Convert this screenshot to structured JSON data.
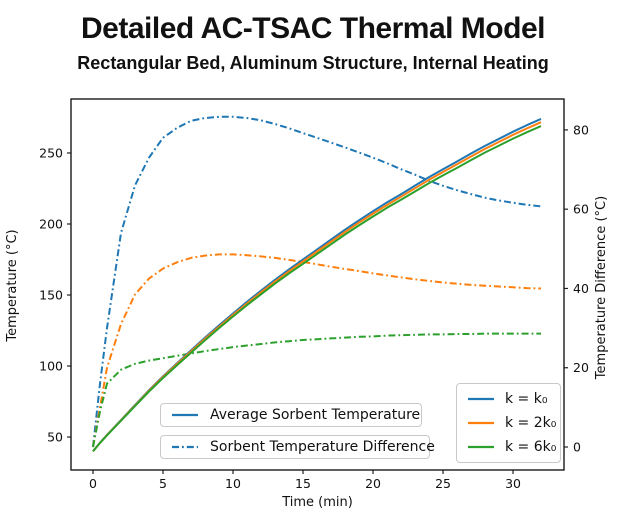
{
  "title": "Detailed AC-TSAC Thermal Model",
  "subtitle": "Rectangular Bed, Aluminum Structure, Internal Heating",
  "chart_data": {
    "type": "line",
    "title": "Detailed AC-TSAC Thermal Model",
    "subtitle": "Rectangular Bed, Aluminum Structure, Internal Heating",
    "xlabel": "Time (min)",
    "ylabel_left": "Temperature (°C)",
    "ylabel_right": "Temperature Difference (°C)",
    "grid": false,
    "xlim": [
      -1.57,
      33.64
    ],
    "ylim_left": [
      26.8,
      288.0
    ],
    "ylim_right": [
      -5.8,
      87.8
    ],
    "xticks": [
      0,
      5,
      10,
      15,
      20,
      25,
      30
    ],
    "yticks_left": [
      50,
      100,
      150,
      200,
      250
    ],
    "yticks_right": [
      0,
      20,
      40,
      60,
      80
    ],
    "x": [
      0,
      0.5,
      1,
      2,
      3,
      4,
      5,
      6,
      7,
      8,
      9,
      10,
      11,
      12,
      13,
      14,
      15,
      16,
      17,
      18,
      19,
      20,
      21,
      22,
      23,
      24,
      25,
      26,
      27,
      28,
      29,
      30,
      31,
      32
    ],
    "series": [
      {
        "name": "Average Sorbent Temperature (k = k0)",
        "axis": "left",
        "style": "solid",
        "color": "#1f77b4",
        "values": [
          40,
          46,
          51.5,
          62,
          72.5,
          83,
          92.8,
          102,
          111,
          120,
          128.6,
          137,
          145.2,
          153,
          160.7,
          168,
          175,
          182,
          189,
          196,
          202.6,
          209,
          215.2,
          221,
          227,
          233,
          238.6,
          244,
          249.6,
          255,
          260,
          265,
          269.6,
          274
        ]
      },
      {
        "name": "Average Sorbent Temperature (k = 2k0)",
        "axis": "left",
        "style": "solid",
        "color": "#ff7f0e",
        "values": [
          40,
          45.9,
          51.4,
          61.8,
          72.2,
          82.6,
          92.3,
          101.4,
          110.3,
          119.2,
          127.7,
          136,
          144.1,
          151.9,
          159.5,
          166.7,
          173.7,
          180.6,
          187.5,
          194.4,
          201,
          207.3,
          213.4,
          219.2,
          225.1,
          231.1,
          236.6,
          242,
          247.5,
          252.9,
          257.8,
          262.8,
          267.3,
          271.7
        ]
      },
      {
        "name": "Average Sorbent Temperature (k = 6k0)",
        "axis": "left",
        "style": "solid",
        "color": "#2ca02c",
        "values": [
          40,
          45.9,
          51.2,
          61.5,
          71.8,
          82.1,
          91.6,
          100.6,
          109.4,
          118.2,
          126.7,
          134.9,
          142.9,
          150.5,
          158,
          165.2,
          172,
          178.9,
          185.7,
          192.6,
          199,
          205.3,
          211.4,
          217,
          222.9,
          228.8,
          234.2,
          239.5,
          245,
          250.3,
          255.2,
          260.1,
          264.6,
          268.9
        ]
      },
      {
        "name": "Sorbent Temperature Difference (k = k0)",
        "axis": "right",
        "style": "dashdot",
        "color": "#1f77b4",
        "values": [
          0,
          16,
          30,
          54,
          66,
          73,
          78,
          80.5,
          82.3,
          83,
          83.3,
          83.3,
          83,
          82.4,
          81.5,
          80.4,
          79.2,
          78,
          76.8,
          75.6,
          74.3,
          73,
          71.6,
          70.1,
          68.7,
          67.2,
          65.9,
          64.8,
          63.8,
          62.9,
          62.2,
          61.6,
          61.1,
          60.7
        ]
      },
      {
        "name": "Sorbent Temperature Difference (k = 2k0)",
        "axis": "right",
        "style": "dashdot",
        "color": "#ff7f0e",
        "values": [
          0,
          10,
          20,
          31,
          38.5,
          42.5,
          45,
          46.6,
          47.7,
          48.3,
          48.6,
          48.6,
          48.4,
          48.1,
          47.7,
          47.2,
          46.7,
          46.1,
          45.5,
          44.9,
          44.4,
          43.8,
          43.3,
          42.8,
          42.3,
          41.9,
          41.5,
          41.2,
          40.9,
          40.7,
          40.5,
          40.3,
          40.1,
          40
        ]
      },
      {
        "name": "Sorbent Temperature Difference (k = 6k0)",
        "axis": "right",
        "style": "dashdot",
        "color": "#2ca02c",
        "values": [
          0,
          9,
          16,
          19.5,
          21,
          21.8,
          22.4,
          23,
          23.6,
          24.2,
          24.7,
          25.2,
          25.6,
          26,
          26.4,
          26.7,
          27,
          27.2,
          27.4,
          27.6,
          27.8,
          27.9,
          28.1,
          28.2,
          28.3,
          28.4,
          28.4,
          28.5,
          28.5,
          28.6,
          28.6,
          28.6,
          28.6,
          28.6
        ]
      }
    ],
    "legends": {
      "line_style_legend": {
        "position": "lower center, stacked boxes",
        "items": [
          {
            "label": "Average Sorbent Temperature",
            "style": "solid",
            "color": "#1f77b4"
          },
          {
            "label": "Sorbent Temperature Difference",
            "style": "dashdot",
            "color": "#1f77b4"
          }
        ]
      },
      "k_legend": {
        "position": "lower right",
        "items": [
          {
            "label": "k = k₀",
            "style": "solid",
            "color": "#1f77b4"
          },
          {
            "label": "k = 2k₀",
            "style": "solid",
            "color": "#ff7f0e"
          },
          {
            "label": "k = 6k₀",
            "style": "solid",
            "color": "#2ca02c"
          }
        ]
      }
    }
  }
}
